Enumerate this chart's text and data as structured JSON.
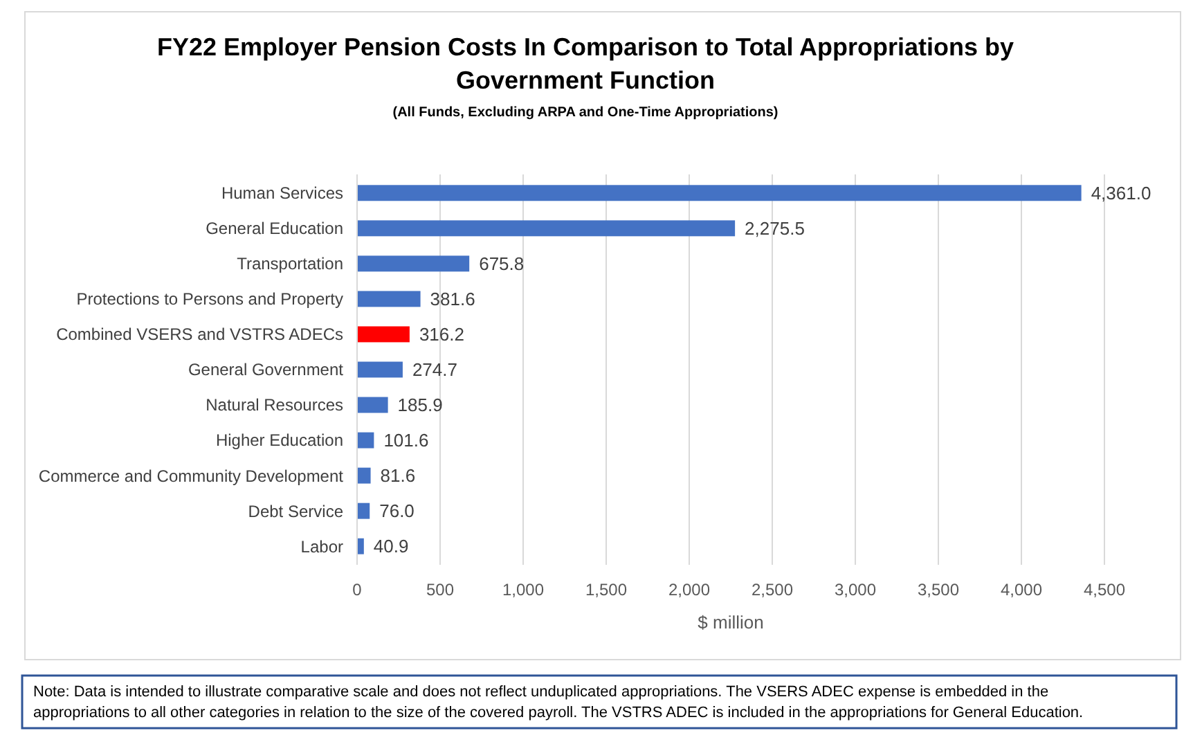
{
  "chart_data": {
    "type": "bar",
    "orientation": "horizontal",
    "title": "FY22 Employer Pension Costs In Comparison to Total Appropriations by Government Function",
    "subtitle": "(All Funds, Excluding ARPA and One-Time Appropriations)",
    "xlabel": "$ million",
    "categories": [
      "Human Services",
      "General Education",
      "Transportation",
      "Protections to Persons and Property",
      "Combined VSERS and VSTRS ADECs",
      "General Government",
      "Natural Resources",
      "Higher Education",
      "Commerce and Community Development",
      "Debt Service",
      "Labor"
    ],
    "values": [
      4361.0,
      2275.5,
      675.8,
      381.6,
      316.2,
      274.7,
      185.9,
      101.6,
      81.6,
      76.0,
      40.9
    ],
    "value_labels": [
      "4,361.0",
      "2,275.5",
      "675.8",
      "381.6",
      "316.2",
      "274.7",
      "185.9",
      "101.6",
      "81.6",
      "76.0",
      "40.9"
    ],
    "colors": [
      "#4472c4",
      "#4472c4",
      "#4472c4",
      "#4472c4",
      "#ff0000",
      "#4472c4",
      "#4472c4",
      "#4472c4",
      "#4472c4",
      "#4472c4",
      "#4472c4"
    ],
    "xlim": [
      0,
      4500
    ],
    "xticks": [
      {
        "value": 0,
        "label": "0"
      },
      {
        "value": 500,
        "label": "500"
      },
      {
        "value": 1000,
        "label": "1,000"
      },
      {
        "value": 1500,
        "label": "1,500"
      },
      {
        "value": 2000,
        "label": "2,000"
      },
      {
        "value": 2500,
        "label": "2,500"
      },
      {
        "value": 3000,
        "label": "3,000"
      },
      {
        "value": 3500,
        "label": "3,500"
      },
      {
        "value": 4000,
        "label": "4,000"
      },
      {
        "value": 4500,
        "label": "4,500"
      }
    ],
    "grid": "x",
    "annotations": [
      "Note: Data is intended to illustrate comparative scale and does not reflect unduplicated appropriations. The VSERS ADEC expense is embedded in the appropriations to all other categories in relation to the size of the covered payroll. The VSTRS ADEC is included in the appropriations for General Education."
    ]
  }
}
